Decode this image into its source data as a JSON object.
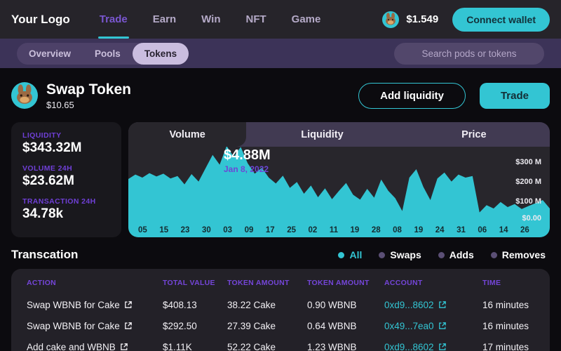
{
  "colors": {
    "teal_accent": "#33c5d3",
    "purple_accent": "#7a57d1",
    "label_purple": "#6f3fd6",
    "subnav_purple": "#3c3358",
    "card_dark": "#19181d",
    "chart_card": "#28262c",
    "page_bg": "#0c0b0f"
  },
  "header": {
    "logo": "Your Logo",
    "nav": [
      {
        "label": "Trade",
        "active": true
      },
      {
        "label": "Earn"
      },
      {
        "label": "Win"
      },
      {
        "label": "NFT"
      },
      {
        "label": "Game"
      }
    ],
    "price": "$1.549",
    "connect_label": "Connect wallet"
  },
  "subnav": {
    "tabs": [
      {
        "label": "Overview"
      },
      {
        "label": "Pools"
      },
      {
        "label": "Tokens",
        "active": true
      }
    ],
    "search_placeholder": "Search pods or tokens"
  },
  "token_header": {
    "title": "Swap Token",
    "price": "$10.65",
    "add_liquidity_label": "Add liquidity",
    "trade_label": "Trade"
  },
  "stats": [
    {
      "label": "LIQUIDITY",
      "value": "$343.32M"
    },
    {
      "label": "VOLUME 24H",
      "value": "$23.62M"
    },
    {
      "label": "TRANSACTION 24H",
      "value": "34.78k"
    }
  ],
  "chart": {
    "tabs": [
      {
        "label": "Volume",
        "active": true
      },
      {
        "label": "Liquidity"
      },
      {
        "label": "Price"
      }
    ],
    "tooltip_value": "$4.88M",
    "tooltip_date": "Jan 8, 2022"
  },
  "chart_data": {
    "type": "area",
    "title": "Volume",
    "unit": "$M",
    "ylim": [
      0,
      400
    ],
    "series_color": "#33c5d3",
    "y_tick_labels": [
      "$300 M",
      "$200 M",
      "$100 M",
      "$0.00"
    ],
    "x_tick_labels": [
      "05",
      "15",
      "23",
      "30",
      "03",
      "09",
      "17",
      "25",
      "02",
      "11",
      "19",
      "28",
      "08",
      "19",
      "24",
      "31",
      "06",
      "14",
      "26"
    ],
    "values": [
      225,
      248,
      232,
      255,
      238,
      252,
      228,
      240,
      198,
      250,
      212,
      280,
      348,
      298,
      395,
      338,
      388,
      305,
      252,
      282,
      232,
      202,
      242,
      180,
      210,
      150,
      192,
      132,
      178,
      122,
      165,
      205,
      145,
      120,
      175,
      130,
      222,
      165,
      128,
      62,
      232,
      275,
      185,
      118,
      228,
      258,
      212,
      248,
      232,
      240,
      55,
      92,
      75,
      108,
      82,
      98,
      72,
      88,
      102,
      118,
      75
    ]
  },
  "transactions": {
    "title": "Transcation",
    "filters": [
      {
        "label": "All",
        "active": true
      },
      {
        "label": "Swaps"
      },
      {
        "label": "Adds"
      },
      {
        "label": "Removes"
      }
    ],
    "columns": [
      "ACTION",
      "TOTAL VALUE",
      "TOKEN AMOUNT",
      "TOKEN AMOUNT",
      "ACCOUNT",
      "TIME"
    ],
    "rows": [
      {
        "action": "Swap WBNB for Cake",
        "total_value": "$408.13",
        "token_amount_1": "38.22 Cake",
        "token_amount_2": "0.90 WBNB",
        "account": "0xd9...8602",
        "time": "16 minutes"
      },
      {
        "action": "Swap WBNB for Cake",
        "total_value": "$292.50",
        "token_amount_1": "27.39 Cake",
        "token_amount_2": "0.64 WBNB",
        "account": "0x49...7ea0",
        "time": "16 minutes"
      },
      {
        "action": "Add cake and WBNB",
        "total_value": "$1.11K",
        "token_amount_1": "52.22 Cake",
        "token_amount_2": "1.23 WBNB",
        "account": "0xd9...8602",
        "time": "17 minutes"
      }
    ]
  }
}
